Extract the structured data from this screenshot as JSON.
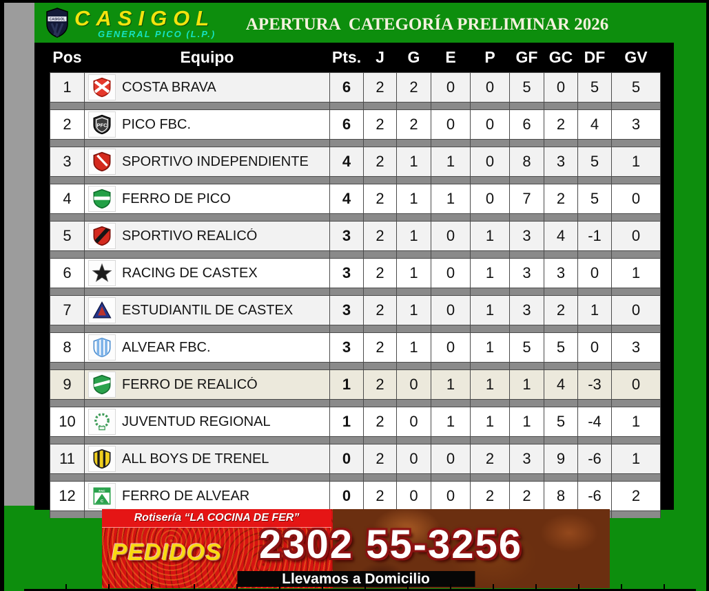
{
  "branding": {
    "name": "CASIGOL",
    "subtitle": "GENERAL PICO (L.P.)",
    "shield_icon": "casigol-crest-icon"
  },
  "header": {
    "title": "APERTURA  CATEGORÍA PRELIMINAR 2026"
  },
  "table": {
    "columns": [
      "Pos",
      "Equipo",
      "Pts.",
      "J",
      "G",
      "E",
      "P",
      "GF",
      "GC",
      "DF",
      "GV"
    ],
    "rows": [
      {
        "pos": 1,
        "team": "COSTA BRAVA",
        "logo": "costa-brava",
        "pts": 6,
        "j": 2,
        "g": 2,
        "e": 0,
        "p": 0,
        "gf": 5,
        "gc": 0,
        "df": 5,
        "gv": 5,
        "highlight": false
      },
      {
        "pos": 2,
        "team": "PICO FBC.",
        "logo": "pico-fbc",
        "pts": 6,
        "j": 2,
        "g": 2,
        "e": 0,
        "p": 0,
        "gf": 6,
        "gc": 2,
        "df": 4,
        "gv": 3,
        "highlight": false
      },
      {
        "pos": 3,
        "team": "SPORTIVO INDEPENDIENTE",
        "logo": "sportivo-independiente",
        "pts": 4,
        "j": 2,
        "g": 1,
        "e": 1,
        "p": 0,
        "gf": 8,
        "gc": 3,
        "df": 5,
        "gv": 1,
        "highlight": false
      },
      {
        "pos": 4,
        "team": "FERRO DE PICO",
        "logo": "ferro-de-pico",
        "pts": 4,
        "j": 2,
        "g": 1,
        "e": 1,
        "p": 0,
        "gf": 7,
        "gc": 2,
        "df": 5,
        "gv": 0,
        "highlight": false
      },
      {
        "pos": 5,
        "team": "SPORTIVO REALICÓ",
        "logo": "sportivo-realico",
        "pts": 3,
        "j": 2,
        "g": 1,
        "e": 0,
        "p": 1,
        "gf": 3,
        "gc": 4,
        "df": -1,
        "gv": 0,
        "highlight": false
      },
      {
        "pos": 6,
        "team": "RACING DE CASTEX",
        "logo": "racing-de-castex",
        "pts": 3,
        "j": 2,
        "g": 1,
        "e": 0,
        "p": 1,
        "gf": 3,
        "gc": 3,
        "df": 0,
        "gv": 1,
        "highlight": false
      },
      {
        "pos": 7,
        "team": "ESTUDIANTIL DE CASTEX",
        "logo": "estudiantil-de-castex",
        "pts": 3,
        "j": 2,
        "g": 1,
        "e": 0,
        "p": 1,
        "gf": 3,
        "gc": 2,
        "df": 1,
        "gv": 0,
        "highlight": false
      },
      {
        "pos": 8,
        "team": "ALVEAR FBC.",
        "logo": "alvear-fbc",
        "pts": 3,
        "j": 2,
        "g": 1,
        "e": 0,
        "p": 1,
        "gf": 5,
        "gc": 5,
        "df": 0,
        "gv": 3,
        "highlight": false
      },
      {
        "pos": 9,
        "team": "FERRO DE REALICÓ",
        "logo": "ferro-de-realico",
        "pts": 1,
        "j": 2,
        "g": 0,
        "e": 1,
        "p": 1,
        "gf": 1,
        "gc": 4,
        "df": -3,
        "gv": 0,
        "highlight": true
      },
      {
        "pos": 10,
        "team": "JUVENTUD REGIONAL",
        "logo": "juventud-regional",
        "pts": 1,
        "j": 2,
        "g": 0,
        "e": 1,
        "p": 1,
        "gf": 1,
        "gc": 5,
        "df": -4,
        "gv": 1,
        "highlight": false
      },
      {
        "pos": 11,
        "team": "ALL BOYS DE TRENEL",
        "logo": "all-boys-de-trenel",
        "pts": 0,
        "j": 2,
        "g": 0,
        "e": 0,
        "p": 2,
        "gf": 3,
        "gc": 9,
        "df": -6,
        "gv": 1,
        "highlight": false
      },
      {
        "pos": 12,
        "team": "FERRO DE ALVEAR",
        "logo": "ferro-de-alvear",
        "pts": 0,
        "j": 2,
        "g": 0,
        "e": 0,
        "p": 2,
        "gf": 2,
        "gc": 8,
        "df": -6,
        "gv": 2,
        "highlight": false
      }
    ]
  },
  "ad_banner": {
    "shop": "Rotisería “LA COCINA DE FER”",
    "cta": "PEDIDOS",
    "phone": "2302 55-3256",
    "tagline": "Llevamos a Domicilio"
  },
  "colors": {
    "background_green": "#0D8E0D",
    "brand_yellow": "#F2E30E",
    "brand_cyan": "#17E2C0",
    "title_cream": "#F4F1DE",
    "row_light": "#F2F2F2",
    "row_white": "#FFFFFF",
    "row_highlight": "#ECE9DC",
    "separator_gray": "#8A8A8A",
    "side_gray": "#9C9C9C",
    "header_black": "#000000",
    "ad_red": "#D61212"
  }
}
